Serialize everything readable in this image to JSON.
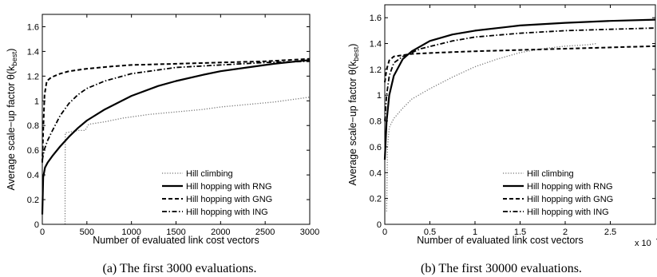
{
  "chart_data": [
    {
      "type": "line",
      "caption": "(a)  The first 3000 evaluations.",
      "xlabel": "Number of evaluated link cost vectors",
      "ylabel": "Average scale−up factor θ(k",
      "ylabel_sub": "best",
      "ylabel_close": ")",
      "xlim": [
        0,
        3000
      ],
      "ylim": [
        0,
        1.7
      ],
      "xticks": [
        0,
        500,
        1000,
        1500,
        2000,
        2500,
        3000
      ],
      "xtick_labels": [
        "0",
        "500",
        "1000",
        "1500",
        "2000",
        "2500",
        "3000"
      ],
      "yticks": [
        0,
        0.2,
        0.4,
        0.6,
        0.8,
        1,
        1.2,
        1.4,
        1.6
      ],
      "ytick_labels": [
        "0",
        "0.2",
        "0.4",
        "0.6",
        "0.8",
        "1",
        "1.2",
        "1.4",
        "1.6"
      ],
      "multiplier": "",
      "legend": "bottom-right",
      "series": [
        {
          "name": "Hill climbing",
          "style": "dotted",
          "points": [
            [
              255,
              0
            ],
            [
              256,
              0.5
            ],
            [
              258,
              0.74
            ],
            [
              400,
              0.76
            ],
            [
              480,
              0.76
            ],
            [
              520,
              0.81
            ],
            [
              700,
              0.83
            ],
            [
              900,
              0.86
            ],
            [
              1200,
              0.89
            ],
            [
              1500,
              0.91
            ],
            [
              1800,
              0.93
            ],
            [
              2000,
              0.95
            ],
            [
              2300,
              0.97
            ],
            [
              2600,
              0.99
            ],
            [
              3000,
              1.03
            ]
          ]
        },
        {
          "name": "Hill hopping with RNG",
          "style": "solid",
          "points": [
            [
              0,
              0.08
            ],
            [
              10,
              0.38
            ],
            [
              30,
              0.46
            ],
            [
              60,
              0.5
            ],
            [
              120,
              0.56
            ],
            [
              200,
              0.63
            ],
            [
              300,
              0.71
            ],
            [
              400,
              0.78
            ],
            [
              500,
              0.84
            ],
            [
              700,
              0.93
            ],
            [
              1000,
              1.04
            ],
            [
              1300,
              1.12
            ],
            [
              1500,
              1.16
            ],
            [
              1800,
              1.21
            ],
            [
              2000,
              1.24
            ],
            [
              2300,
              1.27
            ],
            [
              2600,
              1.3
            ],
            [
              3000,
              1.33
            ]
          ]
        },
        {
          "name": "Hill hopping with GNG",
          "style": "dashed",
          "points": [
            [
              0,
              0.5
            ],
            [
              10,
              0.75
            ],
            [
              25,
              1.05
            ],
            [
              50,
              1.16
            ],
            [
              100,
              1.19
            ],
            [
              200,
              1.22
            ],
            [
              300,
              1.24
            ],
            [
              500,
              1.26
            ],
            [
              800,
              1.28
            ],
            [
              1000,
              1.29
            ],
            [
              1500,
              1.3
            ],
            [
              2000,
              1.31
            ],
            [
              2500,
              1.32
            ],
            [
              3000,
              1.34
            ]
          ]
        },
        {
          "name": "Hill hopping with ING",
          "style": "dashdot",
          "points": [
            [
              0,
              0.52
            ],
            [
              20,
              0.6
            ],
            [
              60,
              0.68
            ],
            [
              100,
              0.74
            ],
            [
              200,
              0.88
            ],
            [
              300,
              0.98
            ],
            [
              400,
              1.05
            ],
            [
              500,
              1.1
            ],
            [
              700,
              1.16
            ],
            [
              1000,
              1.22
            ],
            [
              1500,
              1.27
            ],
            [
              2000,
              1.29
            ],
            [
              2500,
              1.31
            ],
            [
              3000,
              1.32
            ]
          ]
        }
      ]
    },
    {
      "type": "line",
      "caption": "(b)  The first 30000 evaluations.",
      "xlabel": "Number of evaluated link cost vectors",
      "ylabel": "Average scale−up factor θ(k",
      "ylabel_sub": "best",
      "ylabel_close": ")",
      "xlim": [
        0,
        3
      ],
      "ylim": [
        0,
        1.7
      ],
      "xticks": [
        0,
        0.5,
        1,
        1.5,
        2,
        2.5
      ],
      "xtick_labels": [
        "0",
        "0.5",
        "1",
        "1.5",
        "2",
        "2.5"
      ],
      "yticks": [
        0,
        0.2,
        0.4,
        0.6,
        0.8,
        1,
        1.2,
        1.4,
        1.6
      ],
      "ytick_labels": [
        "0",
        "0.2",
        "0.4",
        "0.6",
        "0.8",
        "1",
        "1.2",
        "1.4",
        "1.6"
      ],
      "multiplier": "x 10",
      "legend": "bottom-right",
      "series": [
        {
          "name": "Hill climbing",
          "style": "dotted",
          "points": [
            [
              0.02,
              0.1
            ],
            [
              0.03,
              0.6
            ],
            [
              0.05,
              0.75
            ],
            [
              0.1,
              0.82
            ],
            [
              0.2,
              0.9
            ],
            [
              0.3,
              0.97
            ],
            [
              0.5,
              1.05
            ],
            [
              0.75,
              1.14
            ],
            [
              1.0,
              1.22
            ],
            [
              1.25,
              1.28
            ],
            [
              1.5,
              1.33
            ],
            [
              1.75,
              1.36
            ],
            [
              2.0,
              1.38
            ],
            [
              2.25,
              1.39
            ],
            [
              2.35,
              1.4
            ]
          ]
        },
        {
          "name": "Hill hopping with RNG",
          "style": "solid",
          "points": [
            [
              0,
              0.5
            ],
            [
              0.02,
              0.8
            ],
            [
              0.05,
              1.0
            ],
            [
              0.1,
              1.15
            ],
            [
              0.2,
              1.28
            ],
            [
              0.3,
              1.34
            ],
            [
              0.5,
              1.42
            ],
            [
              0.75,
              1.47
            ],
            [
              1.0,
              1.5
            ],
            [
              1.5,
              1.54
            ],
            [
              2.0,
              1.56
            ],
            [
              2.5,
              1.575
            ],
            [
              3.0,
              1.585
            ]
          ]
        },
        {
          "name": "Hill hopping with GNG",
          "style": "dashed",
          "points": [
            [
              0,
              1.1
            ],
            [
              0.02,
              1.2
            ],
            [
              0.05,
              1.27
            ],
            [
              0.1,
              1.3
            ],
            [
              0.3,
              1.32
            ],
            [
              0.6,
              1.33
            ],
            [
              1.0,
              1.34
            ],
            [
              1.5,
              1.35
            ],
            [
              2.0,
              1.36
            ],
            [
              2.5,
              1.37
            ],
            [
              3.0,
              1.38
            ]
          ]
        },
        {
          "name": "Hill hopping with ING",
          "style": "dashdot",
          "points": [
            [
              0,
              0.8
            ],
            [
              0.02,
              1.0
            ],
            [
              0.05,
              1.15
            ],
            [
              0.1,
              1.25
            ],
            [
              0.2,
              1.3
            ],
            [
              0.4,
              1.36
            ],
            [
              0.75,
              1.42
            ],
            [
              1.0,
              1.45
            ],
            [
              1.5,
              1.48
            ],
            [
              2.0,
              1.5
            ],
            [
              2.5,
              1.51
            ],
            [
              3.0,
              1.52
            ]
          ]
        }
      ]
    }
  ]
}
